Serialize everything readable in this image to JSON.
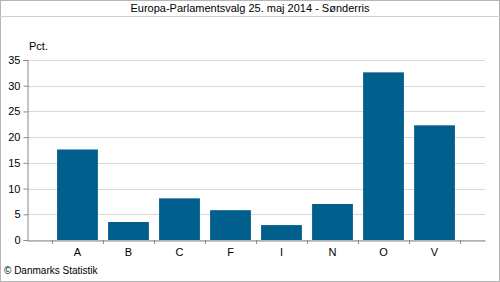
{
  "chart_data": {
    "type": "bar",
    "title": "Europa-Parlamentsvalg 25. maj 2014 - Sønderris",
    "ylabel": "Pct.",
    "source": "© Danmarks Statistik",
    "categories": [
      "A",
      "B",
      "C",
      "F",
      "I",
      "N",
      "O",
      "V"
    ],
    "values": [
      17.6,
      3.5,
      8.1,
      5.8,
      2.9,
      7.0,
      32.6,
      22.3
    ],
    "color": "#005f8c",
    "ylim": [
      0,
      35
    ],
    "yticks": [
      0,
      5,
      10,
      15,
      20,
      25,
      30,
      35
    ],
    "grid": true
  }
}
